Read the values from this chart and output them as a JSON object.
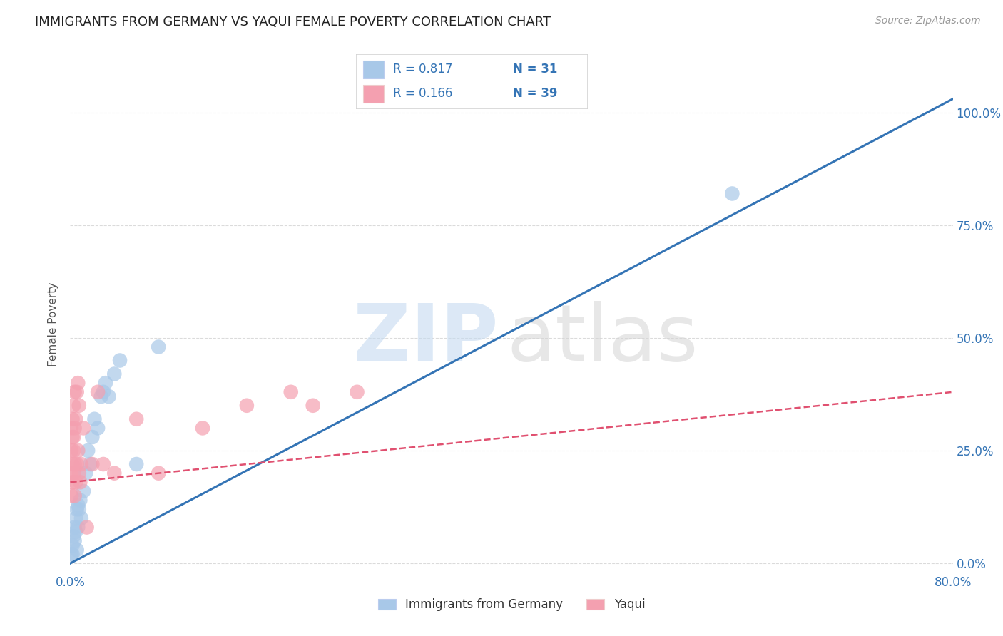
{
  "title": "IMMIGRANTS FROM GERMANY VS YAQUI FEMALE POVERTY CORRELATION CHART",
  "source": "Source: ZipAtlas.com",
  "ylabel": "Female Poverty",
  "ytick_labels": [
    "0.0%",
    "25.0%",
    "50.0%",
    "75.0%",
    "100.0%"
  ],
  "ytick_values": [
    0.0,
    0.25,
    0.5,
    0.75,
    1.0
  ],
  "xlim": [
    0.0,
    0.8
  ],
  "ylim": [
    -0.02,
    1.08
  ],
  "legend_blue_R": "R = 0.817",
  "legend_blue_N": "N = 31",
  "legend_pink_R": "R = 0.166",
  "legend_pink_N": "N = 39",
  "legend_label_blue": "Immigrants from Germany",
  "legend_label_pink": "Yaqui",
  "blue_color": "#a8c8e8",
  "pink_color": "#f4a0b0",
  "blue_line_color": "#3474b5",
  "pink_line_color": "#e05070",
  "blue_scatter": [
    [
      0.001,
      0.02
    ],
    [
      0.002,
      0.04
    ],
    [
      0.002,
      0.02
    ],
    [
      0.003,
      0.06
    ],
    [
      0.004,
      0.05
    ],
    [
      0.004,
      0.08
    ],
    [
      0.005,
      0.07
    ],
    [
      0.005,
      0.1
    ],
    [
      0.006,
      0.03
    ],
    [
      0.006,
      0.12
    ],
    [
      0.007,
      0.08
    ],
    [
      0.007,
      0.13
    ],
    [
      0.008,
      0.12
    ],
    [
      0.009,
      0.14
    ],
    [
      0.01,
      0.1
    ],
    [
      0.012,
      0.16
    ],
    [
      0.014,
      0.2
    ],
    [
      0.016,
      0.25
    ],
    [
      0.018,
      0.22
    ],
    [
      0.02,
      0.28
    ],
    [
      0.022,
      0.32
    ],
    [
      0.025,
      0.3
    ],
    [
      0.028,
      0.37
    ],
    [
      0.03,
      0.38
    ],
    [
      0.032,
      0.4
    ],
    [
      0.035,
      0.37
    ],
    [
      0.04,
      0.42
    ],
    [
      0.045,
      0.45
    ],
    [
      0.06,
      0.22
    ],
    [
      0.08,
      0.48
    ],
    [
      0.6,
      0.82
    ]
  ],
  "pink_scatter": [
    [
      0.001,
      0.25
    ],
    [
      0.001,
      0.3
    ],
    [
      0.001,
      0.2
    ],
    [
      0.001,
      0.15
    ],
    [
      0.002,
      0.28
    ],
    [
      0.002,
      0.22
    ],
    [
      0.002,
      0.32
    ],
    [
      0.002,
      0.18
    ],
    [
      0.003,
      0.25
    ],
    [
      0.003,
      0.28
    ],
    [
      0.003,
      0.35
    ],
    [
      0.003,
      0.2
    ],
    [
      0.004,
      0.3
    ],
    [
      0.004,
      0.22
    ],
    [
      0.004,
      0.38
    ],
    [
      0.004,
      0.15
    ],
    [
      0.005,
      0.32
    ],
    [
      0.005,
      0.18
    ],
    [
      0.006,
      0.22
    ],
    [
      0.006,
      0.38
    ],
    [
      0.007,
      0.25
    ],
    [
      0.007,
      0.4
    ],
    [
      0.008,
      0.2
    ],
    [
      0.008,
      0.35
    ],
    [
      0.009,
      0.18
    ],
    [
      0.01,
      0.22
    ],
    [
      0.012,
      0.3
    ],
    [
      0.015,
      0.08
    ],
    [
      0.02,
      0.22
    ],
    [
      0.025,
      0.38
    ],
    [
      0.03,
      0.22
    ],
    [
      0.04,
      0.2
    ],
    [
      0.06,
      0.32
    ],
    [
      0.08,
      0.2
    ],
    [
      0.12,
      0.3
    ],
    [
      0.16,
      0.35
    ],
    [
      0.2,
      0.38
    ],
    [
      0.22,
      0.35
    ],
    [
      0.26,
      0.38
    ]
  ],
  "blue_line_x": [
    0.0,
    0.8
  ],
  "blue_line_y": [
    0.0,
    1.03
  ],
  "pink_line_x": [
    0.0,
    0.8
  ],
  "pink_line_y": [
    0.18,
    0.38
  ],
  "background_color": "#ffffff",
  "grid_color": "#cccccc",
  "title_color": "#222222",
  "tick_label_color": "#3474b5"
}
